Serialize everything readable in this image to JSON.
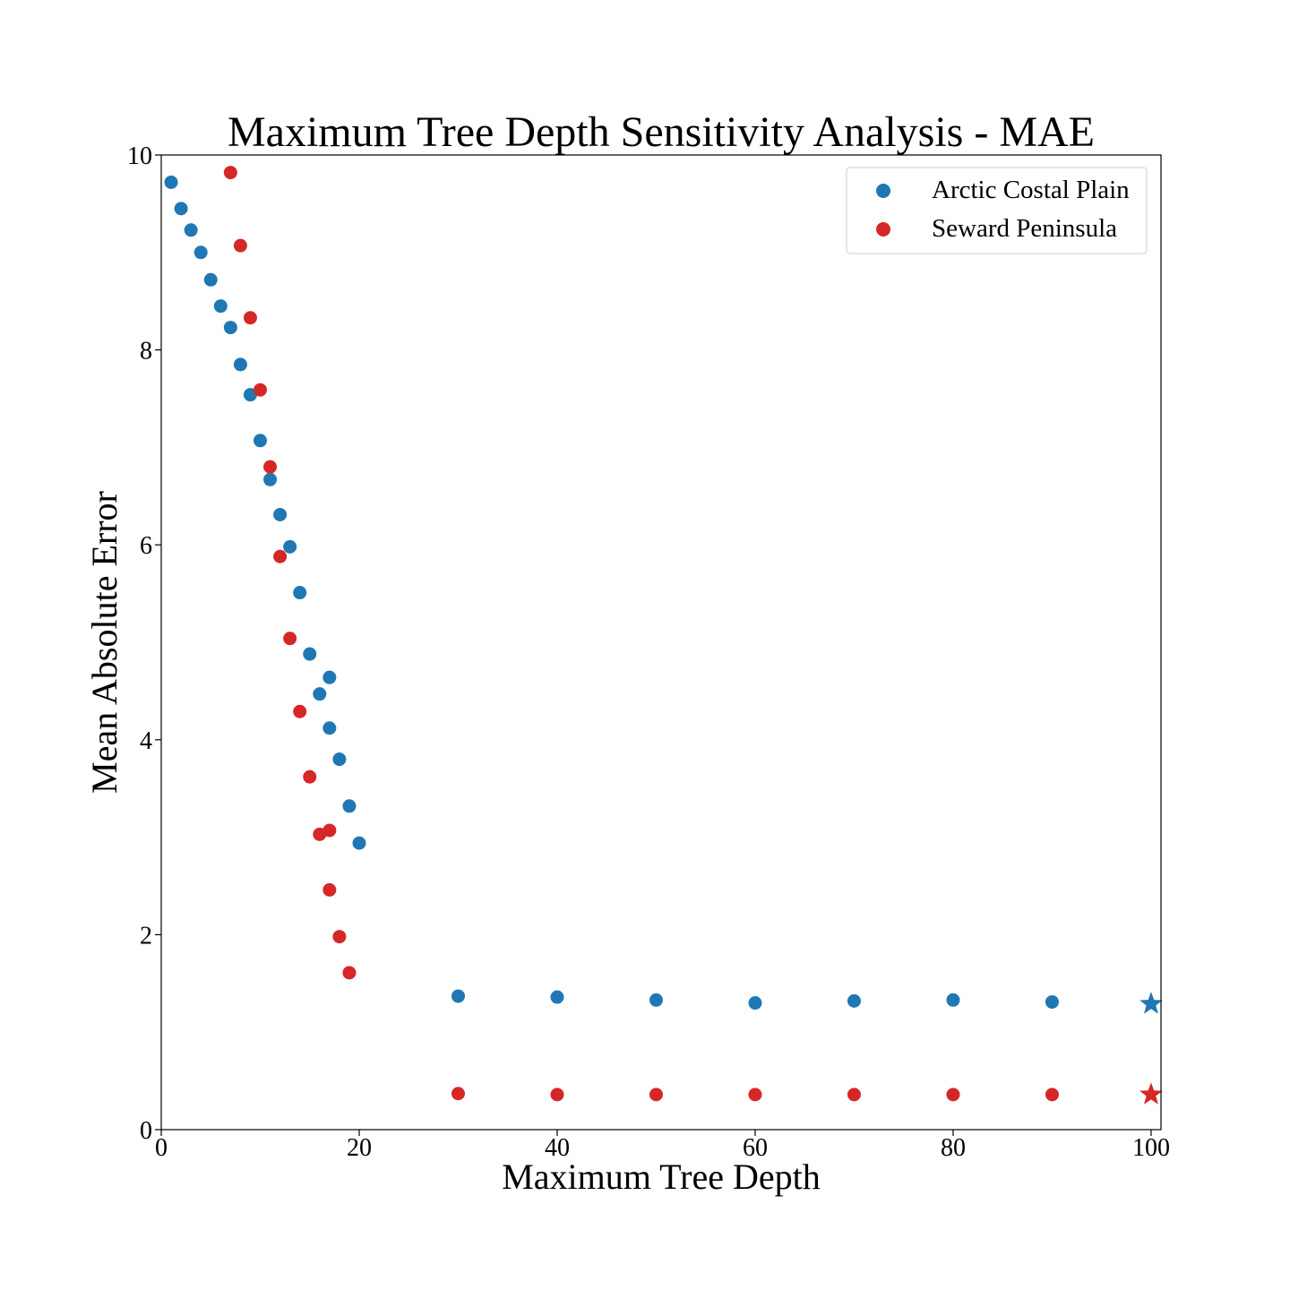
{
  "chart_data": {
    "type": "scatter",
    "title": "Maximum Tree Depth Sensitivity Analysis - MAE",
    "xlabel": "Maximum Tree Depth",
    "ylabel": "Mean Absolute Error",
    "xlim": [
      0,
      101
    ],
    "ylim": [
      0,
      10
    ],
    "xticks": [
      0,
      20,
      40,
      60,
      80,
      100
    ],
    "yticks": [
      0,
      2,
      4,
      6,
      8,
      10
    ],
    "grid": false,
    "legend_position": "top-right",
    "series": [
      {
        "name": "Arctic Costal Plain",
        "color": "#1f77b4",
        "points": [
          [
            1,
            9.72
          ],
          [
            2,
            9.45
          ],
          [
            3,
            9.23
          ],
          [
            4,
            9.0
          ],
          [
            5,
            8.72
          ],
          [
            6,
            8.45
          ],
          [
            7,
            8.23
          ],
          [
            8,
            7.85
          ],
          [
            9,
            7.54
          ],
          [
            10,
            7.07
          ],
          [
            11,
            6.67
          ],
          [
            12,
            6.31
          ],
          [
            13,
            5.98
          ],
          [
            14,
            5.51
          ],
          [
            15,
            4.88
          ],
          [
            16,
            4.47
          ],
          [
            17,
            4.64
          ],
          [
            17,
            4.12
          ],
          [
            18,
            3.8
          ],
          [
            19,
            3.32
          ],
          [
            20,
            2.94
          ],
          [
            30,
            1.37
          ],
          [
            40,
            1.36
          ],
          [
            50,
            1.33
          ],
          [
            60,
            1.3
          ],
          [
            70,
            1.32
          ],
          [
            80,
            1.33
          ],
          [
            90,
            1.31
          ]
        ],
        "highlight": {
          "x": 100,
          "y": 1.29,
          "marker": "star"
        }
      },
      {
        "name": "Seward Peninsula",
        "color": "#d62728",
        "points": [
          [
            7,
            9.82
          ],
          [
            8,
            9.07
          ],
          [
            9,
            8.33
          ],
          [
            10,
            7.59
          ],
          [
            11,
            6.8
          ],
          [
            12,
            5.88
          ],
          [
            13,
            5.04
          ],
          [
            14,
            4.29
          ],
          [
            15,
            3.62
          ],
          [
            16,
            3.03
          ],
          [
            17,
            3.07
          ],
          [
            17,
            2.46
          ],
          [
            18,
            1.98
          ],
          [
            19,
            1.61
          ],
          [
            30,
            0.37
          ],
          [
            40,
            0.36
          ],
          [
            50,
            0.36
          ],
          [
            60,
            0.36
          ],
          [
            70,
            0.36
          ],
          [
            80,
            0.36
          ],
          [
            90,
            0.36
          ]
        ],
        "highlight": {
          "x": 100,
          "y": 0.36,
          "marker": "star"
        }
      }
    ]
  }
}
